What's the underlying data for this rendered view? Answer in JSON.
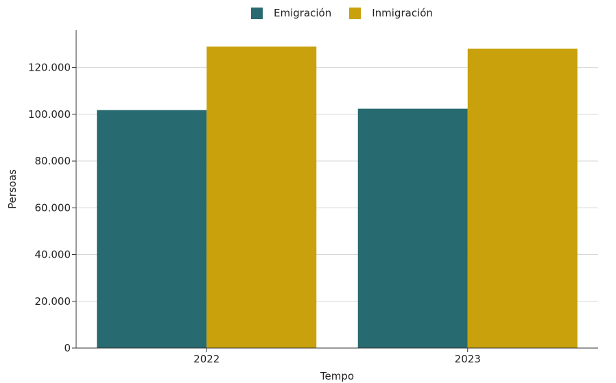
{
  "chart_data": {
    "type": "bar",
    "categories": [
      "2022",
      "2023"
    ],
    "series": [
      {
        "name": "Emigración",
        "color": "#276a6f",
        "values": [
          101800,
          102400
        ]
      },
      {
        "name": "Inmigración",
        "color": "#c8a10c",
        "values": [
          129000,
          128100
        ]
      }
    ],
    "xlabel": "Tempo",
    "ylabel": "Persoas",
    "ylim": [
      0,
      136000
    ],
    "yticks": [
      0,
      20000,
      40000,
      60000,
      80000,
      100000,
      120000
    ],
    "ytick_labels": [
      "0",
      "20.000",
      "40.000",
      "60.000",
      "80.000",
      "100.000",
      "120.000"
    ],
    "grid": true,
    "legend_position": "top-center"
  }
}
